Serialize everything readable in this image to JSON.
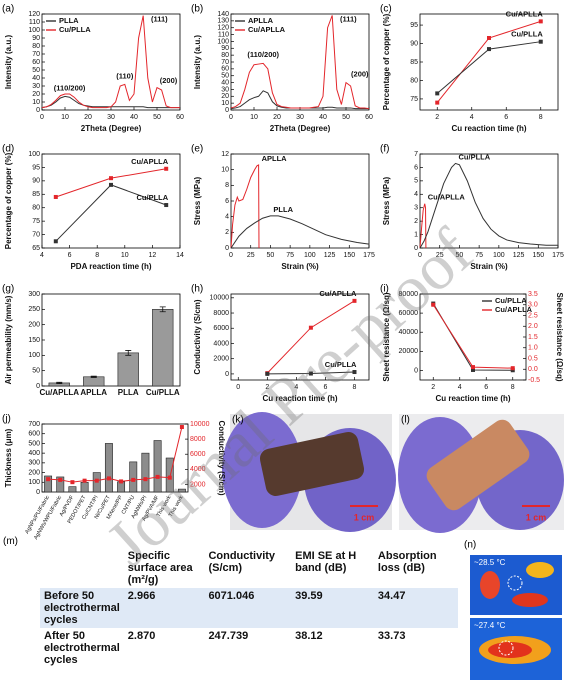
{
  "chart_data": [
    {
      "type": "line",
      "label": "(a)",
      "xlabel": "2Theta (Degree)",
      "ylabel": "Intensity (a.u.)",
      "x": [
        0,
        2,
        4,
        6,
        8,
        10,
        12,
        14,
        16,
        18,
        20,
        22,
        24,
        26,
        28,
        30,
        32,
        34,
        36,
        38,
        40,
        42,
        44,
        46,
        48,
        50,
        52,
        54,
        56,
        58,
        60
      ],
      "series": [
        {
          "name": "PLLA",
          "color": "#333333",
          "values": [
            3,
            4,
            6,
            10,
            15,
            17,
            16,
            12,
            8,
            6,
            5,
            4,
            4,
            4,
            4,
            4,
            4,
            4,
            4,
            4,
            4,
            4,
            4,
            3,
            3,
            3,
            3,
            3,
            3,
            3,
            3
          ]
        },
        {
          "name": "Cu/PLLA",
          "color": "#e3262b",
          "values": [
            3,
            4,
            7,
            12,
            18,
            20,
            20,
            16,
            10,
            6,
            4,
            3,
            3,
            3,
            3,
            4,
            10,
            30,
            32,
            12,
            20,
            90,
            118,
            40,
            10,
            28,
            25,
            5,
            3,
            3,
            3
          ]
        }
      ],
      "xlim": [
        0,
        60
      ],
      "xticks": [
        0,
        10,
        20,
        30,
        40,
        50,
        60
      ],
      "ylim": [
        0,
        120
      ],
      "yticks": [
        0,
        10,
        20,
        30,
        40,
        50,
        60,
        70,
        80,
        90,
        100,
        110,
        120
      ],
      "legend": "upper left",
      "annotations": [
        "(110/200)",
        "(110)",
        "(111)",
        "(200)"
      ]
    },
    {
      "type": "line",
      "label": "(b)",
      "xlabel": "2Theta (Degree)",
      "ylabel": "Intensity (a.u.)",
      "x": [
        0,
        2,
        4,
        6,
        8,
        10,
        12,
        14,
        16,
        18,
        20,
        22,
        24,
        26,
        28,
        30,
        32,
        34,
        36,
        38,
        40,
        42,
        44,
        46,
        48,
        50,
        52,
        54,
        56,
        58,
        60
      ],
      "series": [
        {
          "name": "APLLA",
          "color": "#333333",
          "values": [
            2,
            3,
            5,
            10,
            15,
            18,
            20,
            28,
            25,
            12,
            6,
            4,
            3,
            3,
            3,
            3,
            3,
            3,
            3,
            3,
            3,
            4,
            4,
            3,
            3,
            3,
            3,
            2,
            2,
            2,
            2
          ]
        },
        {
          "name": "Cu/APLLA",
          "color": "#e3262b",
          "values": [
            3,
            5,
            10,
            30,
            55,
            66,
            67,
            68,
            60,
            25,
            8,
            5,
            4,
            3,
            3,
            3,
            3,
            3,
            4,
            5,
            20,
            120,
            138,
            30,
            8,
            40,
            35,
            6,
            3,
            3,
            2
          ]
        }
      ],
      "xlim": [
        0,
        60
      ],
      "xticks": [
        0,
        10,
        20,
        30,
        40,
        50,
        60
      ],
      "ylim": [
        0,
        140
      ],
      "yticks": [
        0,
        10,
        20,
        30,
        40,
        50,
        60,
        70,
        80,
        90,
        100,
        110,
        120,
        130,
        140
      ],
      "legend": "upper left",
      "annotations": [
        "(110/200)",
        "(111)",
        "(200)"
      ]
    },
    {
      "type": "line",
      "label": "(c)",
      "xlabel": "Cu reaction time (h)",
      "ylabel": "Percentage of copper (%)",
      "x": [
        2,
        5,
        8
      ],
      "series": [
        {
          "name": "Cu/APLLA",
          "color": "#e3262b",
          "values": [
            74,
            91.5,
            96
          ]
        },
        {
          "name": "Cu/PLLA",
          "color": "#333333",
          "values": [
            76.5,
            88.5,
            90.5
          ]
        }
      ],
      "xlim": [
        1,
        9
      ],
      "xticks": [
        2,
        4,
        6,
        8
      ],
      "ylim": [
        72,
        98
      ],
      "yticks": [
        75,
        80,
        85,
        90,
        95
      ],
      "legend": "end",
      "markers": true
    },
    {
      "type": "line",
      "label": "(d)",
      "xlabel": "PDA reaction time (h)",
      "ylabel": "Percentage of copper (%)",
      "x": [
        5,
        9,
        13
      ],
      "series": [
        {
          "name": "Cu/APLLA",
          "color": "#e3262b",
          "values": [
            84,
            91,
            94.5
          ]
        },
        {
          "name": "Cu/PLLA",
          "color": "#333333",
          "values": [
            67.5,
            88.5,
            81
          ]
        }
      ],
      "xlim": [
        4,
        14
      ],
      "xticks": [
        4,
        6,
        8,
        10,
        12,
        14
      ],
      "ylim": [
        65,
        100
      ],
      "yticks": [
        65,
        70,
        75,
        80,
        85,
        90,
        95,
        100
      ],
      "legend": "end",
      "markers": true
    },
    {
      "type": "line",
      "label": "(e)",
      "xlabel": "Strain (%)",
      "ylabel": "Stress (MPa)",
      "series": [
        {
          "name": "APLLA",
          "color": "#e3262b",
          "x": [
            0,
            2,
            5,
            8,
            10,
            15,
            20,
            25,
            30,
            33,
            35,
            35.5
          ],
          "values": [
            0,
            3,
            5.5,
            6.5,
            6,
            6.2,
            7.5,
            9,
            10,
            10.5,
            10.6,
            0
          ]
        },
        {
          "name": "PLLA",
          "color": "#333333",
          "x": [
            0,
            10,
            20,
            30,
            40,
            50,
            60,
            75,
            90,
            105,
            120,
            140,
            160,
            175
          ],
          "values": [
            0,
            1.5,
            2.5,
            3.2,
            3.8,
            4.1,
            4.1,
            3.7,
            3.1,
            2.4,
            1.7,
            1.1,
            0.7,
            0.5
          ]
        }
      ],
      "xlim": [
        0,
        175
      ],
      "xticks": [
        0,
        25,
        50,
        75,
        100,
        125,
        150,
        175
      ],
      "ylim": [
        0,
        12
      ],
      "yticks": [
        0,
        2,
        4,
        6,
        8,
        10,
        12
      ],
      "legend": "peak"
    },
    {
      "type": "line",
      "label": "(f)",
      "xlabel": "Strain (%)",
      "ylabel": "Stress (MPa)",
      "series": [
        {
          "name": "Cu/APLLA",
          "color": "#e3262b",
          "x": [
            0,
            2,
            4,
            6,
            7,
            7.5
          ],
          "values": [
            0,
            1.5,
            2.8,
            3.3,
            3,
            0
          ]
        },
        {
          "name": "Cu/PLLA",
          "color": "#333333",
          "x": [
            0,
            5,
            10,
            20,
            30,
            40,
            45,
            50,
            60,
            70,
            80,
            90,
            100,
            110,
            125,
            140,
            160,
            175
          ],
          "values": [
            0,
            0.5,
            1.2,
            3,
            4.8,
            6,
            6.3,
            6.2,
            5,
            3.4,
            2.2,
            1.4,
            0.9,
            0.6,
            0.4,
            0.3,
            0.2,
            0.2
          ]
        }
      ],
      "xlim": [
        0,
        175
      ],
      "xticks": [
        0,
        25,
        50,
        75,
        100,
        125,
        150,
        175
      ],
      "ylim": [
        0,
        7
      ],
      "yticks": [
        0,
        1,
        2,
        3,
        4,
        5,
        6,
        7
      ],
      "legend": "peak"
    },
    {
      "type": "bar",
      "label": "(g)",
      "ylabel": "Air permeability (mm/s)",
      "categories": [
        "Cu/APLLA",
        "APLLA",
        "PLLA",
        "Cu/PLLA"
      ],
      "values": [
        10,
        30,
        108,
        250
      ],
      "errors": [
        2,
        2,
        8,
        8
      ],
      "color": "#9a9a9a",
      "ylim": [
        0,
        300
      ],
      "yticks": [
        0,
        50,
        100,
        150,
        200,
        250,
        300
      ]
    },
    {
      "type": "line",
      "label": "(h)",
      "xlabel": "Cu reaction time (h)",
      "ylabel": "Conductivity (S/cm)",
      "x": [
        2,
        5,
        8
      ],
      "series": [
        {
          "name": "Cu/APLLA",
          "color": "#e3262b",
          "values": [
            100,
            6071,
            9600
          ]
        },
        {
          "name": "Cu/PLLA",
          "color": "#333333",
          "values": [
            5,
            50,
            248
          ]
        }
      ],
      "xlim": [
        -0.5,
        9
      ],
      "xticks": [
        0,
        2,
        4,
        6,
        8
      ],
      "ylim": [
        -800,
        10500
      ],
      "yticks": [
        0,
        2000,
        4000,
        6000,
        8000,
        10000
      ],
      "legend": "end",
      "markers": true
    },
    {
      "type": "line",
      "label": "(i)",
      "xlabel": "Cu reaction time (h)",
      "ylabel": "Sheet resistance (Ω/sq)",
      "y2label": "Sheet resistance (Ω/sq)",
      "x": [
        2,
        5,
        8
      ],
      "series": [
        {
          "name": "Cu/PLLA",
          "color": "#333333",
          "values": [
            70000,
            500,
            200
          ]
        },
        {
          "name": "Cu/APLLA",
          "color": "#e3262b",
          "axis": "y2",
          "values": [
            3.0,
            0.1,
            0.05
          ]
        }
      ],
      "xlim": [
        1,
        9
      ],
      "xticks": [
        2,
        4,
        6,
        8
      ],
      "ylim": [
        -10000,
        80000
      ],
      "yticks": [
        0,
        20000,
        40000,
        60000,
        80000
      ],
      "y2lim": [
        -0.5,
        3.5
      ],
      "y2ticks": [
        -0.5,
        {
          "value": 0,
          "label": "0.0"
        },
        0.5,
        {
          "value": 1,
          "label": "1.0"
        },
        1.5,
        {
          "value": 2,
          "label": "2.0"
        },
        2.5,
        {
          "value": 3,
          "label": "3.0"
        },
        3.5
      ],
      "legend": "upper right",
      "markers": true
    },
    {
      "type": "bar",
      "label": "(j)",
      "ylabel": "Thickness (μm)",
      "y2label": "Conductivity (S/cm)",
      "categories": [
        "AgNPs/PU/Fabric",
        "AgNWs/WPU/Fabric",
        "Ag/PVDF",
        "PEDOT/PET",
        "Cu/CNT/PI",
        "Ni/Cu/PET",
        "MXene/PP",
        "CNT/PU",
        "AgNWs/PI",
        "Ag/PVA/MF",
        "This work",
        "This work"
      ],
      "series": [
        {
          "name": "Thickness",
          "color": "#8c8c8c",
          "values": [
            165,
            155,
            55,
            100,
            200,
            500,
            105,
            310,
            400,
            530,
            350,
            30
          ]
        },
        {
          "name": "Conductivity",
          "color": "#e3262b",
          "axis": "y2",
          "values": [
            2700,
            2600,
            2300,
            2500,
            2500,
            2800,
            2400,
            2600,
            2700,
            3000,
            2900,
            9600
          ]
        }
      ],
      "ylim": [
        0,
        700
      ],
      "yticks": [
        0,
        100,
        200,
        300,
        400,
        500,
        600,
        700
      ],
      "y2lim": [
        1000,
        10000
      ],
      "y2ticks": [
        2000,
        4000,
        6000,
        8000,
        10000
      ],
      "markers": true
    }
  ],
  "photos": [
    {
      "label": "(k)",
      "scale_bar": "1 cm"
    },
    {
      "label": "(l)",
      "scale_bar": "1 cm"
    }
  ],
  "table": {
    "label": "(m)",
    "header": [
      "Specific surface area (m²/g)",
      "Conductivity (S/cm)",
      "EMI SE at H band (dB)",
      "Absorption loss (dB)"
    ],
    "rows": [
      [
        "Before 50 electrothermal cycles",
        "2.966",
        "6071.046",
        "39.59",
        "34.47"
      ],
      [
        "After 50 electrothermal cycles",
        "2.870",
        "247.739",
        "38.12",
        "33.73"
      ]
    ]
  },
  "thermal": {
    "label": "(n)",
    "temperatures": [
      "~28.5 °C",
      "~27.4 °C"
    ]
  },
  "watermark": "Journal Pre-proof"
}
